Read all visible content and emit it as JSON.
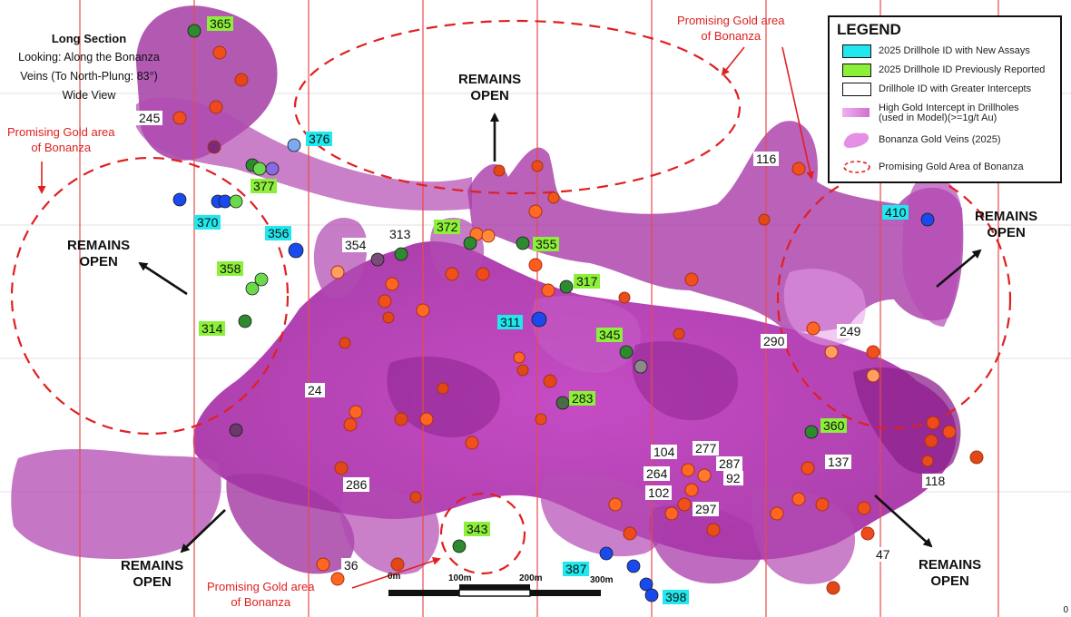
{
  "title": {
    "line1": "Long Section",
    "line2": "Looking: Along the Bonanza",
    "line3": "Veins (To North-Plung: 83°)",
    "line4": "Wide View"
  },
  "legend": {
    "title": "LEGEND",
    "items": [
      {
        "label": "2025 Drillhole ID with New Assays",
        "color": "#20e8ee"
      },
      {
        "label": "2025 Drillhole ID Previously Reported",
        "color": "#8cf03a"
      },
      {
        "label": "Drillhole ID with Greater Intercepts",
        "color": "#ffffff"
      },
      {
        "label": "High Gold Intercept in Drillholes",
        "label2": "(used in Model)(>=1g/t Au)",
        "color": "#e89ae8"
      },
      {
        "label": "Bonanza Gold Veins (2025)",
        "color": "#e58ee5"
      },
      {
        "label": "Promising Gold Area of Bonanza",
        "color": "#e02020"
      }
    ]
  },
  "drillholes": [
    {
      "id": "365",
      "type": "prev"
    },
    {
      "id": "245",
      "type": "greater"
    },
    {
      "id": "376",
      "type": "new"
    },
    {
      "id": "377",
      "type": "prev"
    },
    {
      "id": "370",
      "type": "new"
    },
    {
      "id": "356",
      "type": "new"
    },
    {
      "id": "354",
      "type": "greater"
    },
    {
      "id": "313",
      "type": "greater"
    },
    {
      "id": "372",
      "type": "prev"
    },
    {
      "id": "355",
      "type": "prev"
    },
    {
      "id": "358",
      "type": "prev"
    },
    {
      "id": "317",
      "type": "prev"
    },
    {
      "id": "314",
      "type": "prev"
    },
    {
      "id": "311",
      "type": "new"
    },
    {
      "id": "345",
      "type": "prev"
    },
    {
      "id": "24",
      "type": "greater"
    },
    {
      "id": "283",
      "type": "prev"
    },
    {
      "id": "116",
      "type": "greater"
    },
    {
      "id": "410",
      "type": "new"
    },
    {
      "id": "290",
      "type": "greater"
    },
    {
      "id": "249",
      "type": "greater"
    },
    {
      "id": "360",
      "type": "prev"
    },
    {
      "id": "104",
      "type": "greater"
    },
    {
      "id": "277",
      "type": "greater"
    },
    {
      "id": "287",
      "type": "greater"
    },
    {
      "id": "264",
      "type": "greater"
    },
    {
      "id": "92",
      "type": "greater"
    },
    {
      "id": "102",
      "type": "greater"
    },
    {
      "id": "137",
      "type": "greater"
    },
    {
      "id": "118",
      "type": "greater"
    },
    {
      "id": "297",
      "type": "greater"
    },
    {
      "id": "286",
      "type": "greater"
    },
    {
      "id": "343",
      "type": "prev"
    },
    {
      "id": "36",
      "type": "greater"
    },
    {
      "id": "387",
      "type": "new"
    },
    {
      "id": "398",
      "type": "new"
    },
    {
      "id": "47",
      "type": "greater"
    }
  ],
  "annotations": {
    "remains_open_1": "REMAINS",
    "remains_open_2": "OPEN",
    "promising_1": "Promising Gold area",
    "promising_2": "of Bonanza"
  },
  "scale": {
    "labels": [
      "0m",
      "100m",
      "200m",
      "300m"
    ]
  },
  "corner_mark": "0"
}
